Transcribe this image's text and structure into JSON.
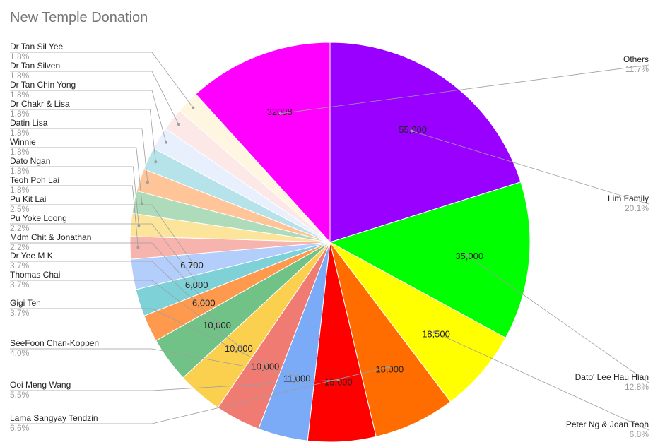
{
  "chart_data": {
    "type": "pie",
    "title": "New Temple Donation",
    "slices": [
      {
        "name": "Lim Family",
        "value": 55000,
        "label": "55,000",
        "percent": "20.1%",
        "color": "#9900ff"
      },
      {
        "name": "Dato' Lee Hau Hian",
        "value": 35000,
        "label": "35,000",
        "percent": "12.8%",
        "color": "#00ff00"
      },
      {
        "name": "Peter Ng & Joan Teoh",
        "value": 18500,
        "label": "18,500",
        "percent": "6.8%",
        "color": "#ffff00"
      },
      {
        "name": "Lama Sangyay Tendzin",
        "value": 18000,
        "label": "18,000",
        "percent": "6.6%",
        "color": "#ff6d01"
      },
      {
        "name": "Ooi Meng Wang",
        "value": 15000,
        "label": "15,000",
        "percent": "5.5%",
        "color": "#ff0000"
      },
      {
        "name": "SeeFoon Chan-Koppen",
        "value": 11000,
        "label": "11,000",
        "percent": "4.0%",
        "color": "#7baaf7"
      },
      {
        "name": "Gigi Teh",
        "value": 10000,
        "label": "10,000",
        "percent": "3.7%",
        "color": "#f07b72"
      },
      {
        "name": "Thomas Chai",
        "value": 10000,
        "label": "10,000",
        "percent": "3.7%",
        "color": "#fcd04f"
      },
      {
        "name": "Dr Yee M K",
        "value": 10000,
        "label": "10,000",
        "percent": "3.7%",
        "color": "#71c287"
      },
      {
        "name": "Mdm Chit & Jonathan",
        "value": 6000,
        "label": "6,000",
        "percent": "2.2%",
        "color": "#ff994d"
      },
      {
        "name": "Pu Yoke Loong",
        "value": 6000,
        "label": "6,000",
        "percent": "2.2%",
        "color": "#7ed1d7"
      },
      {
        "name": "Pu Kit Lai",
        "value": 6700,
        "label": "6,700",
        "percent": "2.5%",
        "color": "#b3cefb"
      },
      {
        "name": "Teoh Poh Lai",
        "value": 5000,
        "label": "",
        "percent": "1.8%",
        "color": "#f7b4ae"
      },
      {
        "name": "Dato Ngan",
        "value": 5000,
        "label": "",
        "percent": "1.8%",
        "color": "#fde49b"
      },
      {
        "name": "Winnie",
        "value": 5000,
        "label": "",
        "percent": "1.8%",
        "color": "#aedcba"
      },
      {
        "name": "Datin Lisa",
        "value": 5000,
        "label": "",
        "percent": "1.8%",
        "color": "#ffc599"
      },
      {
        "name": "Dr Chakr & Lisa",
        "value": 5000,
        "label": "",
        "percent": "1.8%",
        "color": "#b6e3e9"
      },
      {
        "name": "Dr Tan Chin Yong",
        "value": 5000,
        "label": "",
        "percent": "1.8%",
        "color": "#e8f0fe"
      },
      {
        "name": "Dr Tan Silven",
        "value": 5000,
        "label": "",
        "percent": "1.8%",
        "color": "#fce8e6"
      },
      {
        "name": "Dr Tan Sil Yee",
        "value": 5000,
        "label": "",
        "percent": "1.8%",
        "color": "#fef6e0"
      },
      {
        "name": "Others",
        "value": 32008,
        "label": "32008",
        "percent": "11.7%",
        "color": "#ff00ff"
      }
    ],
    "start_angle_deg": 0,
    "direction": "clockwise",
    "legend": "labeled-callouts"
  }
}
